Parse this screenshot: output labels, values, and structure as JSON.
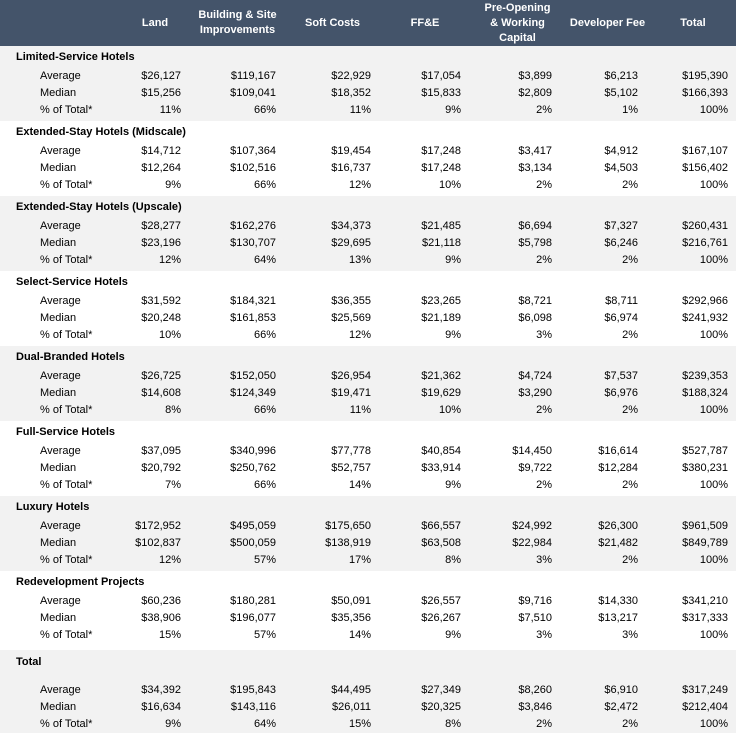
{
  "table": {
    "columns": [
      "Land",
      "Building & Site Improvements",
      "Soft Costs",
      "FF&E",
      "Pre-Opening & Working Capital",
      "Developer Fee",
      "Total"
    ],
    "groups": [
      {
        "title": "Limited-Service Hotels",
        "rows": [
          [
            "Average",
            "$26,127",
            "$119,167",
            "$22,929",
            "$17,054",
            "$3,899",
            "$6,213",
            "$195,390"
          ],
          [
            "Median",
            "$15,256",
            "$109,041",
            "$18,352",
            "$15,833",
            "$2,809",
            "$5,102",
            "$166,393"
          ],
          [
            "% of Total*",
            "11%",
            "66%",
            "11%",
            "9%",
            "2%",
            "1%",
            "100%"
          ]
        ]
      },
      {
        "title": "Extended-Stay Hotels (Midscale)",
        "rows": [
          [
            "Average",
            "$14,712",
            "$107,364",
            "$19,454",
            "$17,248",
            "$3,417",
            "$4,912",
            "$167,107"
          ],
          [
            "Median",
            "$12,264",
            "$102,516",
            "$16,737",
            "$17,248",
            "$3,134",
            "$4,503",
            "$156,402"
          ],
          [
            "% of Total*",
            "9%",
            "66%",
            "12%",
            "10%",
            "2%",
            "2%",
            "100%"
          ]
        ]
      },
      {
        "title": "Extended-Stay Hotels (Upscale)",
        "rows": [
          [
            "Average",
            "$28,277",
            "$162,276",
            "$34,373",
            "$21,485",
            "$6,694",
            "$7,327",
            "$260,431"
          ],
          [
            "Median",
            "$23,196",
            "$130,707",
            "$29,695",
            "$21,118",
            "$5,798",
            "$6,246",
            "$216,761"
          ],
          [
            "% of Total*",
            "12%",
            "64%",
            "13%",
            "9%",
            "2%",
            "2%",
            "100%"
          ]
        ]
      },
      {
        "title": "Select-Service Hotels",
        "rows": [
          [
            "Average",
            "$31,592",
            "$184,321",
            "$36,355",
            "$23,265",
            "$8,721",
            "$8,711",
            "$292,966"
          ],
          [
            "Median",
            "$20,248",
            "$161,853",
            "$25,569",
            "$21,189",
            "$6,098",
            "$6,974",
            "$241,932"
          ],
          [
            "% of Total*",
            "10%",
            "66%",
            "12%",
            "9%",
            "3%",
            "2%",
            "100%"
          ]
        ]
      },
      {
        "title": "Dual-Branded Hotels",
        "rows": [
          [
            "Average",
            "$26,725",
            "$152,050",
            "$26,954",
            "$21,362",
            "$4,724",
            "$7,537",
            "$239,353"
          ],
          [
            "Median",
            "$14,608",
            "$124,349",
            "$19,471",
            "$19,629",
            "$3,290",
            "$6,976",
            "$188,324"
          ],
          [
            "% of Total*",
            "8%",
            "66%",
            "11%",
            "10%",
            "2%",
            "2%",
            "100%"
          ]
        ]
      },
      {
        "title": "Full-Service Hotels",
        "rows": [
          [
            "Average",
            "$37,095",
            "$340,996",
            "$77,778",
            "$40,854",
            "$14,450",
            "$16,614",
            "$527,787"
          ],
          [
            "Median",
            "$20,792",
            "$250,762",
            "$52,757",
            "$33,914",
            "$9,722",
            "$12,284",
            "$380,231"
          ],
          [
            "% of Total*",
            "7%",
            "66%",
            "14%",
            "9%",
            "2%",
            "2%",
            "100%"
          ]
        ]
      },
      {
        "title": "Luxury Hotels",
        "rows": [
          [
            "Average",
            "$172,952",
            "$495,059",
            "$175,650",
            "$66,557",
            "$24,992",
            "$26,300",
            "$961,509"
          ],
          [
            "Median",
            "$102,837",
            "$500,059",
            "$138,919",
            "$63,508",
            "$22,984",
            "$21,482",
            "$849,789"
          ],
          [
            "% of Total*",
            "12%",
            "57%",
            "17%",
            "8%",
            "3%",
            "2%",
            "100%"
          ]
        ]
      },
      {
        "title": "Redevelopment Projects",
        "rows": [
          [
            "Average",
            "$60,236",
            "$180,281",
            "$50,091",
            "$26,557",
            "$9,716",
            "$14,330",
            "$341,210"
          ],
          [
            "Median",
            "$38,906",
            "$196,077",
            "$35,356",
            "$26,267",
            "$7,510",
            "$13,217",
            "$317,333"
          ],
          [
            "% of Total*",
            "15%",
            "57%",
            "14%",
            "9%",
            "3%",
            "3%",
            "100%"
          ]
        ]
      }
    ],
    "total": {
      "title": "Total",
      "rows": [
        [
          "Average",
          "$34,392",
          "$195,843",
          "$44,495",
          "$27,349",
          "$8,260",
          "$6,910",
          "$317,249"
        ],
        [
          "Median",
          "$16,634",
          "$143,116",
          "$26,011",
          "$20,325",
          "$3,846",
          "$2,472",
          "$212,404"
        ],
        [
          "% of Total*",
          "9%",
          "64%",
          "15%",
          "8%",
          "2%",
          "2%",
          "100%"
        ]
      ]
    }
  }
}
